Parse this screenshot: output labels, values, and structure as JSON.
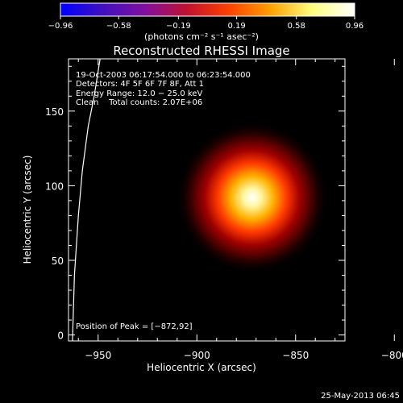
{
  "chart_data": {
    "type": "heatmap",
    "title": "Reconstructed RHESSI Image",
    "xlabel": "Heliocentric X (arcsec)",
    "ylabel": "Heliocentric Y (arcsec)",
    "xlim": [
      -965,
      -825
    ],
    "ylim": [
      -4,
      185
    ],
    "x_ticks": [
      -950,
      -900,
      -850,
      -800
    ],
    "x_tick_labels": [
      "−950",
      "−900",
      "−850",
      "−800"
    ],
    "y_ticks": [
      0,
      50,
      100,
      150
    ],
    "y_tick_labels": [
      "0",
      "50",
      "100",
      "150"
    ],
    "colorbar": {
      "range": [
        -0.96,
        0.96
      ],
      "ticks": [
        -0.96,
        -0.58,
        -0.19,
        0.19,
        0.58,
        0.96
      ],
      "tick_labels": [
        "−0.96",
        "−0.58",
        "−0.19",
        "0.19",
        "0.58",
        "0.96"
      ],
      "unit_label": "(photons cm⁻² s⁻¹ asec⁻²)",
      "colormap": [
        "#0000ff",
        "#4010c0",
        "#8010a0",
        "#c01030",
        "#ff4000",
        "#ffa000",
        "#ffff80",
        "#ffffff"
      ]
    },
    "info_lines": [
      "19-Oct-2003 06:17:54.000 to 06:23:54.000",
      "Detectors: 4F 5F 6F 7F 8F, Att 1",
      "Energy Range: 12.0 − 25.0 keV",
      "Clean    Total counts: 2.07E+06"
    ],
    "source": {
      "peak_x": -872,
      "peak_y": 92,
      "peak_value": 0.96
    },
    "peak_label": "Position of Peak = [−872,92]",
    "solar_limb": [
      [
        -963,
        -4
      ],
      [
        -962,
        40
      ],
      [
        -960,
        80
      ],
      [
        -958,
        110
      ],
      [
        -955,
        140
      ],
      [
        -952,
        160
      ],
      [
        -949,
        185
      ]
    ]
  },
  "footer_date": "25-May-2013 06:45"
}
